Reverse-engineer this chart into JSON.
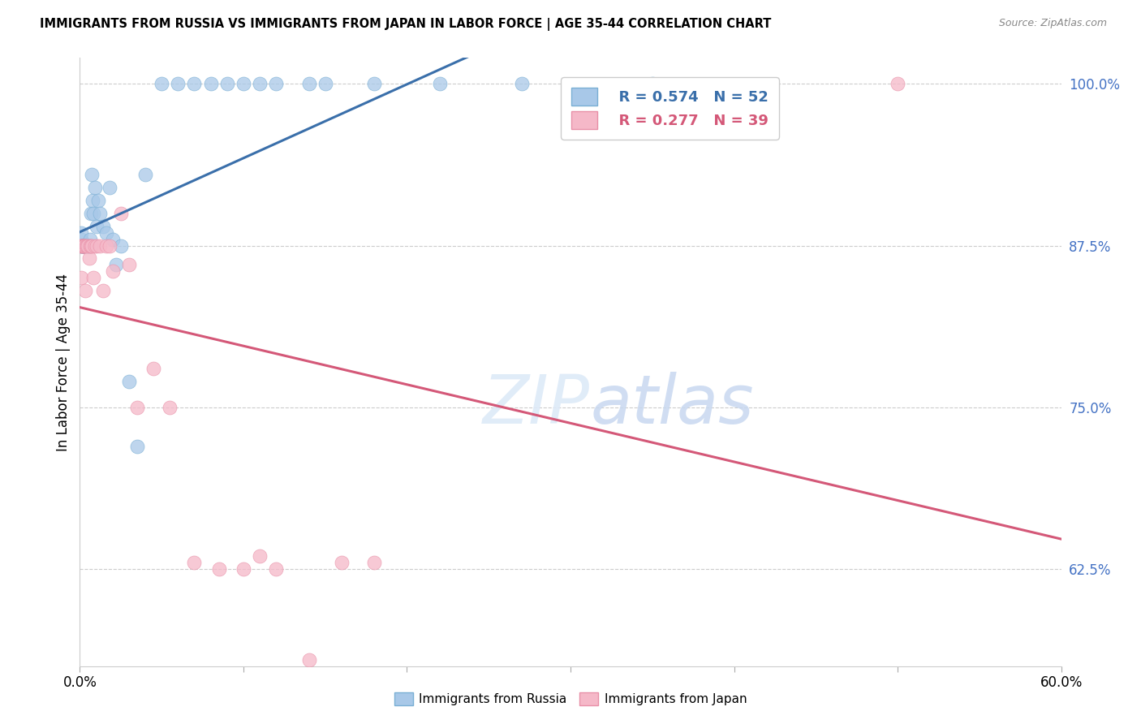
{
  "title": "IMMIGRANTS FROM RUSSIA VS IMMIGRANTS FROM JAPAN IN LABOR FORCE | AGE 35-44 CORRELATION CHART",
  "source": "Source: ZipAtlas.com",
  "ylabel": "In Labor Force | Age 35-44",
  "right_yticks": [
    62.5,
    75.0,
    87.5,
    100.0
  ],
  "legend_russia": "Immigrants from Russia",
  "legend_japan": "Immigrants from Japan",
  "R_russia": 0.574,
  "N_russia": 52,
  "R_japan": 0.277,
  "N_japan": 39,
  "blue_color": "#a8c8e8",
  "blue_edge_color": "#7aafd4",
  "blue_line_color": "#3a6faa",
  "pink_color": "#f5b8c8",
  "pink_edge_color": "#e890a8",
  "pink_line_color": "#d45878",
  "xmin": 0.0,
  "xmax": 60.0,
  "ymin": 55.0,
  "ymax": 102.0,
  "russia_x": [
    0.05,
    0.08,
    0.1,
    0.12,
    0.15,
    0.18,
    0.2,
    0.22,
    0.25,
    0.28,
    0.3,
    0.35,
    0.38,
    0.4,
    0.42,
    0.45,
    0.48,
    0.5,
    0.55,
    0.58,
    0.6,
    0.65,
    0.7,
    0.75,
    0.8,
    0.9,
    1.0,
    1.1,
    1.2,
    1.4,
    1.6,
    1.8,
    2.0,
    2.2,
    2.5,
    3.0,
    3.5,
    4.0,
    5.0,
    6.0,
    7.0,
    8.0,
    9.0,
    10.0,
    11.0,
    12.0,
    14.0,
    15.0,
    18.0,
    22.0,
    27.0,
    35.0
  ],
  "russia_y": [
    87.5,
    88.0,
    88.5,
    87.5,
    87.5,
    87.5,
    87.5,
    87.5,
    87.5,
    87.5,
    87.5,
    87.5,
    87.5,
    87.5,
    87.5,
    87.5,
    87.5,
    87.5,
    87.5,
    87.5,
    88.0,
    90.0,
    93.0,
    91.0,
    90.0,
    92.0,
    89.0,
    91.0,
    90.0,
    89.0,
    88.5,
    92.0,
    88.0,
    86.0,
    87.5,
    77.0,
    72.0,
    93.0,
    100.0,
    100.0,
    100.0,
    100.0,
    100.0,
    100.0,
    100.0,
    100.0,
    100.0,
    100.0,
    100.0,
    100.0,
    100.0,
    100.0
  ],
  "japan_x": [
    0.05,
    0.08,
    0.1,
    0.15,
    0.18,
    0.2,
    0.25,
    0.28,
    0.3,
    0.35,
    0.4,
    0.45,
    0.5,
    0.55,
    0.6,
    0.65,
    0.7,
    0.8,
    0.9,
    1.0,
    1.2,
    1.4,
    1.6,
    1.8,
    2.0,
    2.5,
    3.0,
    3.5,
    4.5,
    5.5,
    7.0,
    8.5,
    10.0,
    11.0,
    12.0,
    14.0,
    16.0,
    18.0,
    50.0
  ],
  "japan_y": [
    87.5,
    85.0,
    87.5,
    87.5,
    87.5,
    87.5,
    87.5,
    87.5,
    87.5,
    84.0,
    87.5,
    87.5,
    87.5,
    86.5,
    87.5,
    87.5,
    87.5,
    85.0,
    87.5,
    87.5,
    87.5,
    84.0,
    87.5,
    87.5,
    85.5,
    90.0,
    86.0,
    75.0,
    78.0,
    75.0,
    63.0,
    62.5,
    62.5,
    63.5,
    62.5,
    55.5,
    63.0,
    63.0,
    100.0
  ]
}
